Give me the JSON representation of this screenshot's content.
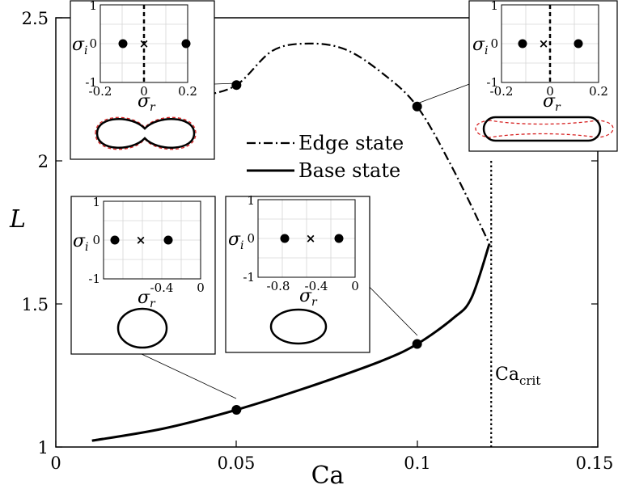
{
  "chart_data": {
    "type": "line",
    "xlabel": "Ca",
    "ylabel": "L",
    "xlim": [
      0,
      0.15
    ],
    "ylim": [
      1,
      2.5
    ],
    "x_ticks": [
      "0",
      "0.05",
      "0.1",
      "0.15"
    ],
    "y_ticks": [
      "1",
      "1.5",
      "2",
      "2.5"
    ],
    "legend": {
      "placement": "center"
    },
    "series": [
      {
        "name": "Edge state",
        "style": "dash-dot",
        "x": [
          0.0315,
          0.04,
          0.05,
          0.06,
          0.07,
          0.08,
          0.09,
          0.1,
          0.11,
          0.12
        ],
        "y": [
          2.2,
          2.225,
          2.265,
          2.385,
          2.41,
          2.39,
          2.31,
          2.19,
          1.97,
          1.71
        ]
      },
      {
        "name": "Base state",
        "style": "solid",
        "x": [
          0.01,
          0.03,
          0.05,
          0.07,
          0.09,
          0.1,
          0.11,
          0.115,
          0.12
        ],
        "y": [
          1.022,
          1.065,
          1.13,
          1.21,
          1.3,
          1.36,
          1.45,
          1.52,
          1.71
        ]
      }
    ],
    "markers": [
      {
        "x": 0.05,
        "y": 2.265
      },
      {
        "x": 0.1,
        "y": 2.19
      },
      {
        "x": 0.05,
        "y": 1.13
      },
      {
        "x": 0.1,
        "y": 1.36
      }
    ],
    "critical_line": {
      "x": 0.1205,
      "label_main": "Ca",
      "label_sub": "crit"
    },
    "insets": [
      {
        "id": "inset-edge-005",
        "xlabel": "σ",
        "xlabel_sub": "r",
        "ylabel": "σ",
        "ylabel_sub": "i",
        "x_ticks": [
          "-0.2",
          "0",
          "0.2"
        ],
        "y_ticks": [
          "1",
          "0",
          "-1"
        ],
        "xlim": [
          -0.2,
          0.2
        ],
        "eigen_points": [
          -0.12,
          0.15
        ],
        "cross": -0.01,
        "imag_axis_dashed": true,
        "shape": "peanut"
      },
      {
        "id": "inset-edge-010",
        "xlabel": "σ",
        "xlabel_sub": "r",
        "ylabel": "σ",
        "ylabel_sub": "i",
        "x_ticks": [
          "-0.2",
          "0",
          "0.2"
        ],
        "y_ticks": [
          "1",
          "0",
          "-1"
        ],
        "xlim": [
          -0.2,
          0.2
        ],
        "eigen_points": [
          -0.19,
          0.1
        ],
        "cross": -0.04,
        "imag_axis_dashed": true,
        "shape": "elongated"
      },
      {
        "id": "inset-base-005",
        "xlabel": "σ",
        "xlabel_sub": "r",
        "ylabel": "σ",
        "ylabel_sub": "i",
        "x_ticks": [
          "-0.4",
          "0"
        ],
        "y_ticks": [
          "1",
          "0",
          "-1"
        ],
        "xlim": [
          -1,
          0
        ],
        "eigen_points": [
          -0.95,
          -0.45
        ],
        "cross": -0.7,
        "imag_axis_dashed": false,
        "shape": "circle"
      },
      {
        "id": "inset-base-010",
        "xlabel": "σ",
        "xlabel_sub": "r",
        "ylabel": "σ",
        "ylabel_sub": "i",
        "x_ticks": [
          "-0.8",
          "-0.4",
          "0"
        ],
        "y_ticks": [
          "1",
          "0",
          "-1"
        ],
        "xlim": [
          -1,
          0
        ],
        "eigen_points": [
          -0.78,
          -0.2
        ],
        "cross": -0.5,
        "imag_axis_dashed": false,
        "shape": "oval"
      }
    ]
  }
}
